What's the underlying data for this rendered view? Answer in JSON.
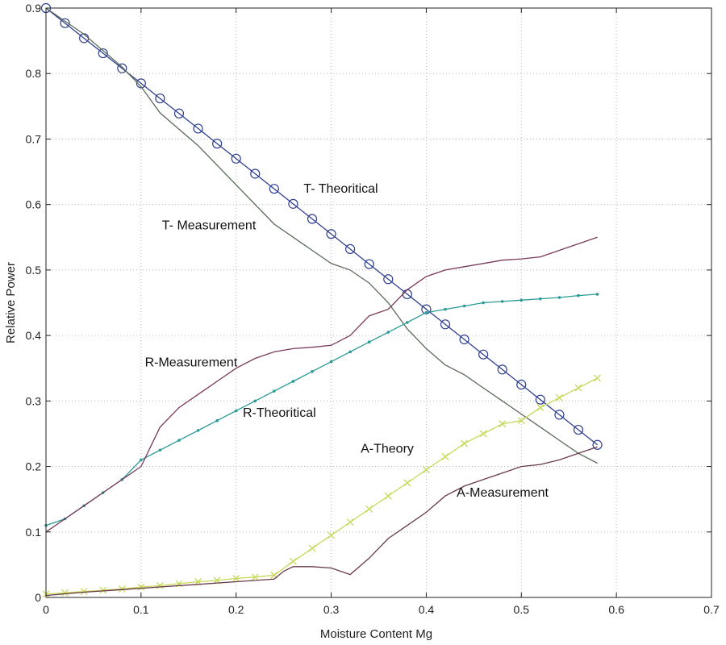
{
  "chart_data": {
    "type": "line",
    "title": "",
    "xlabel": "Moisture Content Mg",
    "ylabel": "Relative Power",
    "xlim": [
      0,
      0.7
    ],
    "ylim": [
      0,
      0.9
    ],
    "xticks": [
      0,
      0.1,
      0.2,
      0.3,
      0.4,
      0.5,
      0.6,
      0.7
    ],
    "xtick_labels": [
      "0",
      "0.1",
      "0.2",
      "0.3",
      "0.4",
      "0.5",
      "0.6",
      "0.7"
    ],
    "yticks": [
      0,
      0.1,
      0.2,
      0.3,
      0.4,
      0.5,
      0.6,
      0.7,
      0.8,
      0.9
    ],
    "ytick_labels": [
      "0",
      "0.1",
      "0.2",
      "0.3",
      "0.4",
      "0.5",
      "0.6",
      "0.7",
      "0.8",
      "0.9"
    ],
    "grid": true,
    "series": [
      {
        "name": "T- Theoritical",
        "color": "#2f3f8f",
        "marker": "circle",
        "x": [
          0,
          0.02,
          0.04,
          0.06,
          0.08,
          0.1,
          0.12,
          0.14,
          0.16,
          0.18,
          0.2,
          0.22,
          0.24,
          0.26,
          0.28,
          0.3,
          0.32,
          0.34,
          0.36,
          0.38,
          0.4,
          0.42,
          0.44,
          0.46,
          0.48,
          0.5,
          0.52,
          0.54,
          0.56,
          0.58
        ],
        "y": [
          0.9,
          0.877,
          0.854,
          0.831,
          0.808,
          0.785,
          0.762,
          0.739,
          0.716,
          0.693,
          0.67,
          0.647,
          0.624,
          0.601,
          0.578,
          0.555,
          0.532,
          0.509,
          0.486,
          0.463,
          0.44,
          0.417,
          0.394,
          0.371,
          0.348,
          0.325,
          0.302,
          0.279,
          0.256,
          0.233
        ]
      },
      {
        "name": "T- Measurement",
        "color": "#5a6a5a",
        "marker": "none",
        "x": [
          0,
          0.04,
          0.08,
          0.1,
          0.12,
          0.16,
          0.2,
          0.24,
          0.28,
          0.3,
          0.32,
          0.34,
          0.36,
          0.38,
          0.4,
          0.42,
          0.44,
          0.46,
          0.48,
          0.5,
          0.52,
          0.54,
          0.56,
          0.58
        ],
        "y": [
          0.9,
          0.86,
          0.81,
          0.78,
          0.74,
          0.69,
          0.63,
          0.57,
          0.53,
          0.51,
          0.5,
          0.48,
          0.45,
          0.41,
          0.38,
          0.355,
          0.34,
          0.32,
          0.3,
          0.28,
          0.26,
          0.24,
          0.22,
          0.205
        ]
      },
      {
        "name": "R-Theoritical",
        "color": "#2a9a96",
        "marker": "dot",
        "x": [
          0,
          0.02,
          0.04,
          0.06,
          0.08,
          0.1,
          0.12,
          0.14,
          0.16,
          0.18,
          0.2,
          0.22,
          0.24,
          0.26,
          0.28,
          0.3,
          0.32,
          0.34,
          0.36,
          0.38,
          0.4,
          0.42,
          0.44,
          0.46,
          0.48,
          0.5,
          0.52,
          0.54,
          0.56,
          0.58
        ],
        "y": [
          0.11,
          0.12,
          0.14,
          0.16,
          0.18,
          0.21,
          0.225,
          0.24,
          0.255,
          0.27,
          0.285,
          0.3,
          0.315,
          0.33,
          0.345,
          0.36,
          0.375,
          0.39,
          0.405,
          0.42,
          0.435,
          0.44,
          0.445,
          0.45,
          0.452,
          0.454,
          0.456,
          0.458,
          0.461,
          0.463
        ]
      },
      {
        "name": "R-Measurement",
        "color": "#7a3a5a",
        "marker": "none",
        "x": [
          0,
          0.02,
          0.04,
          0.06,
          0.08,
          0.1,
          0.11,
          0.12,
          0.14,
          0.16,
          0.18,
          0.2,
          0.22,
          0.24,
          0.26,
          0.28,
          0.3,
          0.32,
          0.34,
          0.36,
          0.38,
          0.4,
          0.42,
          0.44,
          0.46,
          0.48,
          0.5,
          0.52,
          0.54,
          0.56,
          0.58
        ],
        "y": [
          0.1,
          0.12,
          0.14,
          0.16,
          0.18,
          0.2,
          0.23,
          0.26,
          0.29,
          0.31,
          0.33,
          0.35,
          0.365,
          0.375,
          0.38,
          0.382,
          0.385,
          0.4,
          0.43,
          0.44,
          0.47,
          0.49,
          0.5,
          0.505,
          0.51,
          0.515,
          0.517,
          0.52,
          0.53,
          0.54,
          0.55
        ]
      },
      {
        "name": "A-Theory",
        "color": "#c8d85a",
        "marker": "x",
        "x": [
          0,
          0.02,
          0.04,
          0.06,
          0.08,
          0.1,
          0.12,
          0.14,
          0.16,
          0.18,
          0.2,
          0.22,
          0.24,
          0.26,
          0.28,
          0.3,
          0.32,
          0.34,
          0.36,
          0.38,
          0.4,
          0.42,
          0.44,
          0.46,
          0.48,
          0.5,
          0.52,
          0.54,
          0.56,
          0.58
        ],
        "y": [
          0.005,
          0.007,
          0.009,
          0.011,
          0.013,
          0.016,
          0.018,
          0.021,
          0.024,
          0.026,
          0.029,
          0.031,
          0.034,
          0.055,
          0.075,
          0.095,
          0.115,
          0.135,
          0.155,
          0.175,
          0.195,
          0.215,
          0.235,
          0.25,
          0.265,
          0.27,
          0.29,
          0.305,
          0.32,
          0.335
        ]
      },
      {
        "name": "A-Measurement",
        "color": "#6a3a4a",
        "marker": "none",
        "x": [
          0,
          0.04,
          0.08,
          0.12,
          0.16,
          0.2,
          0.22,
          0.24,
          0.25,
          0.26,
          0.28,
          0.3,
          0.32,
          0.34,
          0.36,
          0.38,
          0.4,
          0.42,
          0.44,
          0.46,
          0.48,
          0.5,
          0.52,
          0.54,
          0.56,
          0.58
        ],
        "y": [
          0.003,
          0.008,
          0.012,
          0.016,
          0.02,
          0.024,
          0.026,
          0.028,
          0.04,
          0.047,
          0.047,
          0.045,
          0.035,
          0.06,
          0.09,
          0.11,
          0.13,
          0.155,
          0.17,
          0.18,
          0.19,
          0.2,
          0.203,
          0.21,
          0.22,
          0.23
        ]
      }
    ],
    "annotations": [
      {
        "text": "T- Theoritical",
        "x": 0.271,
        "y": 0.618
      },
      {
        "text": "T- Measurement",
        "x": 0.122,
        "y": 0.562
      },
      {
        "text": "R-Measurement",
        "x": 0.104,
        "y": 0.353
      },
      {
        "text": "R-Theoritical",
        "x": 0.207,
        "y": 0.276
      },
      {
        "text": "A-Theory",
        "x": 0.331,
        "y": 0.221
      },
      {
        "text": "A-Measurement",
        "x": 0.432,
        "y": 0.154
      }
    ]
  }
}
